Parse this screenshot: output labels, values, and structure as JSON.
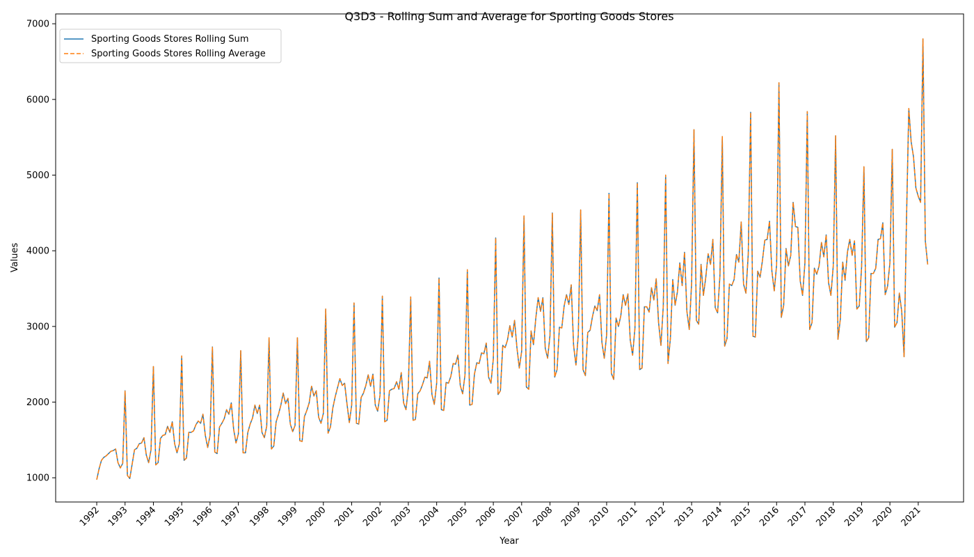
{
  "chart_data": {
    "type": "line",
    "title": "Q3D3 - Rolling Sum and Average for Sporting Goods Stores",
    "xlabel": "Year",
    "ylabel": "Values",
    "xlim": [
      1990.55,
      2022.6
    ],
    "ylim": [
      680,
      7130
    ],
    "x_ticks": [
      "1992",
      "1993",
      "1994",
      "1995",
      "1996",
      "1997",
      "1998",
      "1999",
      "2000",
      "2001",
      "2002",
      "2003",
      "2004",
      "2005",
      "2006",
      "2007",
      "2008",
      "2009",
      "2010",
      "2011",
      "2012",
      "2013",
      "2014",
      "2015",
      "2016",
      "2017",
      "2018",
      "2019",
      "2020",
      "2021"
    ],
    "y_ticks": [
      1000,
      2000,
      3000,
      4000,
      5000,
      6000,
      7000
    ],
    "grid": false,
    "legend_position": "top-left",
    "x_start_year": 1992,
    "series": [
      {
        "name": "Sporting Goods Stores Rolling Sum",
        "color": "#1f77b4",
        "linestyle": "solid",
        "values": [
          975,
          1120,
          1230,
          1270,
          1290,
          1320,
          1350,
          1360,
          1380,
          1200,
          1130,
          1190,
          2150,
          1030,
          990,
          1180,
          1370,
          1390,
          1450,
          1460,
          1530,
          1300,
          1200,
          1370,
          2470,
          1170,
          1200,
          1520,
          1560,
          1570,
          1680,
          1600,
          1740,
          1450,
          1330,
          1450,
          2610,
          1230,
          1260,
          1600,
          1600,
          1620,
          1700,
          1750,
          1720,
          1840,
          1560,
          1400,
          1560,
          2730,
          1340,
          1320,
          1670,
          1720,
          1780,
          1900,
          1840,
          1990,
          1640,
          1460,
          1580,
          2680,
          1330,
          1330,
          1600,
          1710,
          1790,
          1960,
          1850,
          1960,
          1600,
          1530,
          1680,
          2850,
          1380,
          1420,
          1740,
          1840,
          1960,
          2120,
          1980,
          2050,
          1710,
          1610,
          1690,
          2850,
          1490,
          1480,
          1810,
          1890,
          1990,
          2210,
          2080,
          2150,
          1800,
          1720,
          1850,
          3230,
          1590,
          1670,
          1920,
          2070,
          2190,
          2310,
          2220,
          2250,
          1980,
          1730,
          1960,
          3310,
          1720,
          1710,
          2060,
          2120,
          2220,
          2360,
          2210,
          2370,
          1960,
          1880,
          2090,
          3400,
          1740,
          1760,
          2150,
          2170,
          2180,
          2270,
          2170,
          2390,
          1990,
          1900,
          2190,
          3390,
          1760,
          1770,
          2110,
          2150,
          2230,
          2330,
          2320,
          2540,
          2100,
          1970,
          2250,
          3640,
          1900,
          1890,
          2260,
          2250,
          2340,
          2510,
          2500,
          2620,
          2220,
          2110,
          2360,
          3750,
          1960,
          1970,
          2370,
          2520,
          2510,
          2650,
          2640,
          2780,
          2330,
          2250,
          2570,
          4170,
          2100,
          2150,
          2750,
          2720,
          2820,
          3010,
          2860,
          3080,
          2720,
          2450,
          2670,
          4460,
          2200,
          2170,
          2940,
          2760,
          3110,
          3380,
          3200,
          3380,
          2710,
          2580,
          2880,
          4500,
          2330,
          2430,
          2990,
          2980,
          3270,
          3420,
          3290,
          3550,
          2750,
          2490,
          2890,
          4540,
          2430,
          2350,
          2920,
          2950,
          3130,
          3270,
          3210,
          3420,
          2790,
          2580,
          2890,
          4760,
          2380,
          2300,
          3110,
          3000,
          3140,
          3420,
          3280,
          3430,
          2820,
          2620,
          2980,
          4900,
          2430,
          2450,
          3260,
          3260,
          3190,
          3510,
          3350,
          3630,
          3050,
          2750,
          3270,
          5000,
          2510,
          2840,
          3620,
          3280,
          3460,
          3840,
          3540,
          3980,
          3200,
          2960,
          3570,
          5600,
          3080,
          3030,
          3820,
          3410,
          3650,
          3960,
          3820,
          4150,
          3250,
          3180,
          3670,
          5510,
          2740,
          2840,
          3560,
          3540,
          3620,
          3950,
          3850,
          4380,
          3560,
          3440,
          3960,
          5830,
          2870,
          2860,
          3730,
          3650,
          3870,
          4140,
          4150,
          4390,
          3730,
          3470,
          3810,
          6220,
          3120,
          3280,
          4030,
          3800,
          3940,
          4640,
          4320,
          4310,
          3600,
          3410,
          3840,
          5840,
          2960,
          3050,
          3770,
          3690,
          3800,
          4110,
          3920,
          4210,
          3580,
          3410,
          3800,
          5520,
          2830,
          3100,
          3850,
          3610,
          3980,
          4150,
          3940,
          4130,
          3230,
          3270,
          3780,
          5110,
          2800,
          2850,
          3700,
          3700,
          3770,
          4150,
          4160,
          4370,
          3420,
          3530,
          3840,
          5340,
          2990,
          3050,
          3440,
          3200,
          2600,
          4380,
          5880,
          5440,
          5240,
          4830,
          4720,
          4640,
          6800,
          4130,
          3820
        ]
      },
      {
        "name": "Sporting Goods Stores Rolling Average",
        "color": "#ff7f0e",
        "linestyle": "dashed",
        "values": [
          975,
          1120,
          1230,
          1270,
          1290,
          1320,
          1350,
          1360,
          1380,
          1200,
          1130,
          1190,
          2150,
          1030,
          990,
          1180,
          1370,
          1390,
          1450,
          1460,
          1530,
          1300,
          1200,
          1370,
          2470,
          1170,
          1200,
          1520,
          1560,
          1570,
          1680,
          1600,
          1740,
          1450,
          1330,
          1450,
          2610,
          1230,
          1260,
          1600,
          1600,
          1620,
          1700,
          1750,
          1720,
          1840,
          1560,
          1400,
          1560,
          2730,
          1340,
          1320,
          1670,
          1720,
          1780,
          1900,
          1840,
          1990,
          1640,
          1460,
          1580,
          2680,
          1330,
          1330,
          1600,
          1710,
          1790,
          1960,
          1850,
          1960,
          1600,
          1530,
          1680,
          2850,
          1380,
          1420,
          1740,
          1840,
          1960,
          2120,
          1980,
          2050,
          1710,
          1610,
          1690,
          2850,
          1490,
          1480,
          1810,
          1890,
          1990,
          2210,
          2080,
          2150,
          1800,
          1720,
          1850,
          3230,
          1590,
          1670,
          1920,
          2070,
          2190,
          2310,
          2220,
          2250,
          1980,
          1730,
          1960,
          3310,
          1720,
          1710,
          2060,
          2120,
          2220,
          2360,
          2210,
          2370,
          1960,
          1880,
          2090,
          3400,
          1740,
          1760,
          2150,
          2170,
          2180,
          2270,
          2170,
          2390,
          1990,
          1900,
          2190,
          3390,
          1760,
          1770,
          2110,
          2150,
          2230,
          2330,
          2320,
          2540,
          2100,
          1970,
          2250,
          3640,
          1900,
          1890,
          2260,
          2250,
          2340,
          2510,
          2500,
          2620,
          2220,
          2110,
          2360,
          3750,
          1960,
          1970,
          2370,
          2520,
          2510,
          2650,
          2640,
          2780,
          2330,
          2250,
          2570,
          4170,
          2100,
          2150,
          2750,
          2720,
          2820,
          3010,
          2860,
          3080,
          2720,
          2450,
          2670,
          4460,
          2200,
          2170,
          2940,
          2760,
          3110,
          3380,
          3200,
          3380,
          2710,
          2580,
          2880,
          4500,
          2330,
          2430,
          2990,
          2980,
          3270,
          3420,
          3290,
          3550,
          2750,
          2490,
          2890,
          4540,
          2430,
          2350,
          2920,
          2950,
          3130,
          3270,
          3210,
          3420,
          2790,
          2580,
          2890,
          4760,
          2380,
          2300,
          3110,
          3000,
          3140,
          3420,
          3280,
          3430,
          2820,
          2620,
          2980,
          4900,
          2430,
          2450,
          3260,
          3260,
          3190,
          3510,
          3350,
          3630,
          3050,
          2750,
          3270,
          5000,
          2510,
          2840,
          3620,
          3280,
          3460,
          3840,
          3540,
          3980,
          3200,
          2960,
          3570,
          5600,
          3080,
          3030,
          3820,
          3410,
          3650,
          3960,
          3820,
          4150,
          3250,
          3180,
          3670,
          5510,
          2740,
          2840,
          3560,
          3540,
          3620,
          3950,
          3850,
          4380,
          3560,
          3440,
          3960,
          5830,
          2870,
          2860,
          3730,
          3650,
          3870,
          4140,
          4150,
          4390,
          3730,
          3470,
          3810,
          6220,
          3120,
          3280,
          4030,
          3800,
          3940,
          4640,
          4320,
          4310,
          3600,
          3410,
          3840,
          5840,
          2960,
          3050,
          3770,
          3690,
          3800,
          4110,
          3920,
          4210,
          3580,
          3410,
          3800,
          5520,
          2830,
          3100,
          3850,
          3610,
          3980,
          4150,
          3940,
          4130,
          3230,
          3270,
          3780,
          5110,
          2800,
          2850,
          3700,
          3700,
          3770,
          4150,
          4160,
          4370,
          3420,
          3530,
          3840,
          5340,
          2990,
          3050,
          3440,
          3200,
          2600,
          4380,
          5880,
          5440,
          5240,
          4830,
          4720,
          4640,
          6800,
          4130,
          3820
        ]
      }
    ]
  }
}
